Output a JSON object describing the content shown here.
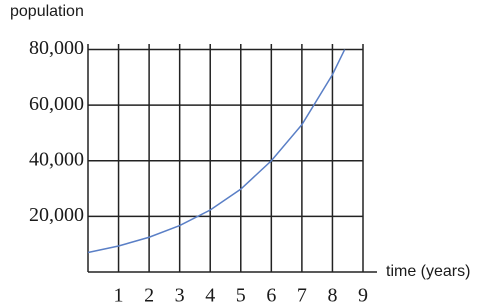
{
  "chart_data": {
    "type": "line",
    "y_axis_label": "population",
    "x_axis_label": "time (years)",
    "x": [
      0,
      1,
      2,
      3,
      4,
      5,
      6,
      7,
      8,
      8.4
    ],
    "series": [
      {
        "color": "#5a7fc6",
        "values": [
          7000,
          9350,
          12500,
          16700,
          22300,
          29800,
          40000,
          53000,
          71000,
          80000
        ]
      }
    ],
    "xlim": [
      0,
      9
    ],
    "xticks": [
      1,
      2,
      3,
      4,
      5,
      6,
      7,
      8,
      9
    ],
    "ylim": [
      0,
      82000
    ],
    "yticks": [
      {
        "value": 20000,
        "label": "20,000"
      },
      {
        "value": 40000,
        "label": "40,000"
      },
      {
        "value": 60000,
        "label": "60,000"
      },
      {
        "value": 80000,
        "label": "80,000"
      }
    ],
    "grid": true
  }
}
